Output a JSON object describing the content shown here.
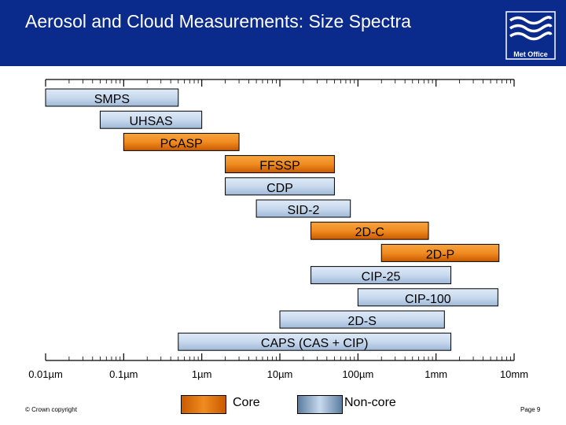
{
  "title": "Aerosol and Cloud Measurements: Size Spectra",
  "logo": {
    "text": "Met Office",
    "icon": "met-office-logo"
  },
  "footer": {
    "copyright": "© Crown copyright",
    "page": "Page 9"
  },
  "colors": {
    "header_bg": "#0a2a8c",
    "core": "#f08c20",
    "core_edge": "#c95a00",
    "noncore": "#c8d9ee",
    "noncore_edge": "#5b7da0"
  },
  "legend": {
    "core": "Core",
    "noncore": "Non-core"
  },
  "chart_data": {
    "type": "range-bar",
    "x_scale": "log",
    "x_unit": "µm",
    "xlim": [
      0.01,
      10000
    ],
    "x_ticks": [
      {
        "value": 0.01,
        "label": "0.01µm"
      },
      {
        "value": 0.1,
        "label": "0.1µm"
      },
      {
        "value": 1,
        "label": "1µm"
      },
      {
        "value": 10,
        "label": "10µm"
      },
      {
        "value": 100,
        "label": "100µm"
      },
      {
        "value": 1000,
        "label": "1mm"
      },
      {
        "value": 10000,
        "label": "10mm"
      }
    ],
    "instruments": [
      {
        "name": "SMPS",
        "min": 0.01,
        "max": 0.5,
        "category": "noncore"
      },
      {
        "name": "UHSAS",
        "min": 0.05,
        "max": 1.0,
        "category": "noncore"
      },
      {
        "name": "PCASP",
        "min": 0.1,
        "max": 3.0,
        "category": "core"
      },
      {
        "name": "FFSSP",
        "min": 2.0,
        "max": 50,
        "category": "core"
      },
      {
        "name": "CDP",
        "min": 2.0,
        "max": 50,
        "category": "noncore"
      },
      {
        "name": "SID-2",
        "min": 5.0,
        "max": 80,
        "category": "noncore"
      },
      {
        "name": "2D-C",
        "min": 25,
        "max": 800,
        "category": "core"
      },
      {
        "name": "2D-P",
        "min": 200,
        "max": 6400,
        "category": "core"
      },
      {
        "name": "CIP-25",
        "min": 25,
        "max": 1550,
        "category": "noncore"
      },
      {
        "name": "CIP-100",
        "min": 100,
        "max": 6200,
        "category": "noncore"
      },
      {
        "name": "2D-S",
        "min": 10,
        "max": 1280,
        "category": "noncore"
      },
      {
        "name": "CAPS (CAS + CIP)",
        "min": 0.5,
        "max": 1550,
        "category": "noncore"
      }
    ]
  }
}
